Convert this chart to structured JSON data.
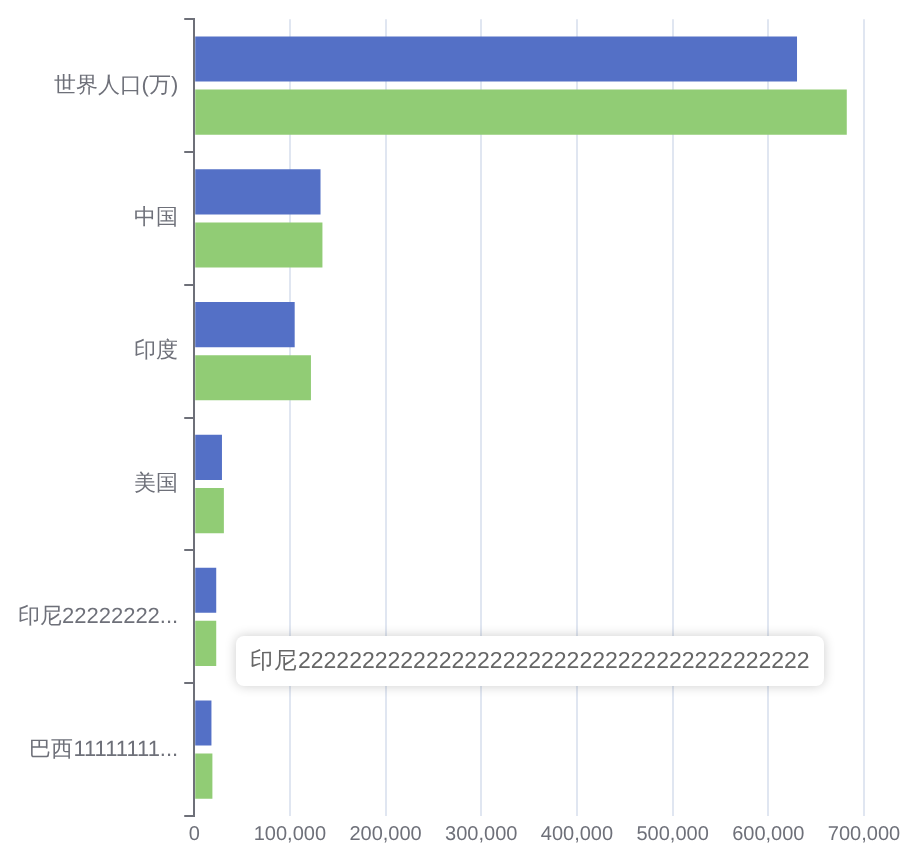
{
  "chart_data": {
    "type": "bar",
    "orientation": "horizontal",
    "categories": [
      "世界人口(万)",
      "中国",
      "印度",
      "美国",
      "印尼22222222...",
      "巴西11111111..."
    ],
    "series": [
      {
        "color": "#5470c6",
        "values": [
          630000,
          132000,
          105000,
          29000,
          23000,
          18000
        ]
      },
      {
        "color": "#91cc75",
        "values": [
          682000,
          134000,
          122000,
          31000,
          23000,
          19000
        ]
      }
    ],
    "xlim": [
      0,
      700000
    ],
    "xticks": [
      {
        "value": 0,
        "label": "0"
      },
      {
        "value": 100000,
        "label": "100,000"
      },
      {
        "value": 200000,
        "label": "200,000"
      },
      {
        "value": 300000,
        "label": "300,000"
      },
      {
        "value": 400000,
        "label": "400,000"
      },
      {
        "value": 500000,
        "label": "500,000"
      },
      {
        "value": 600000,
        "label": "600,000"
      },
      {
        "value": 700000,
        "label": "700,000"
      }
    ],
    "grid": "x",
    "legend": false,
    "annotations": [
      "印尼2222222222222222222222222222222222222222"
    ]
  }
}
